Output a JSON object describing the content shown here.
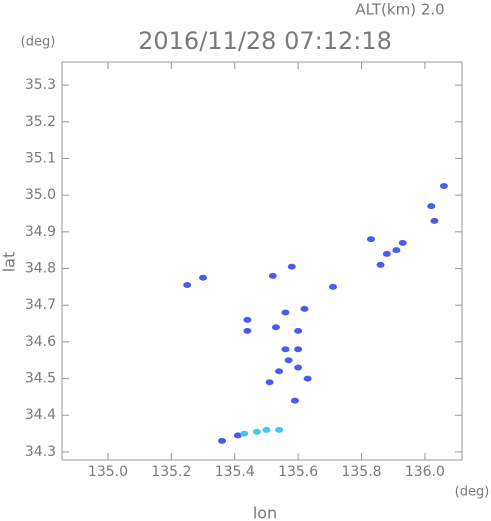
{
  "chart_data": {
    "type": "scatter",
    "title": "2016/11/28 07:12:18",
    "subtitle": "ALT(km) 2.0",
    "x_label": "lon",
    "y_label": "lat",
    "x_unit": "(deg)",
    "y_unit": "(deg)",
    "xlim": [
      134.855,
      136.117
    ],
    "ylim": [
      34.278,
      35.363
    ],
    "xticks": [
      {
        "value": 135.0,
        "label": "135.0"
      },
      135.2,
      135.4,
      135.6,
      135.8,
      {
        "value": 136.0,
        "label": "136.0"
      }
    ],
    "yticks": [
      35.3,
      35.2,
      35.1,
      {
        "value": 35.0,
        "label": "35.0"
      },
      34.9,
      34.8,
      34.7,
      34.6,
      34.5,
      34.4,
      34.3
    ],
    "series": [
      {
        "color": "#4a5cf0",
        "x": [
          135.25,
          135.3,
          135.58,
          135.71,
          135.52,
          135.44,
          135.44,
          135.53,
          135.56,
          135.6,
          135.62,
          135.56,
          135.57,
          135.54,
          135.6,
          135.51,
          135.6,
          135.63,
          135.59,
          135.36,
          135.41,
          135.93,
          135.91,
          135.88,
          136.02,
          136.03,
          136.06,
          135.83,
          135.86
        ],
        "values": [
          34.755,
          34.775,
          34.805,
          34.75,
          34.78,
          34.66,
          34.63,
          34.64,
          34.68,
          34.63,
          34.69,
          34.58,
          34.55,
          34.52,
          34.53,
          34.49,
          34.58,
          34.5,
          34.44,
          34.33,
          34.345,
          34.87,
          34.85,
          34.84,
          34.97,
          34.93,
          35.025,
          34.88,
          34.81
        ]
      },
      {
        "color": "#40c8f0",
        "x": [
          135.43,
          135.47,
          135.5,
          135.54
        ],
        "values": [
          34.35,
          34.355,
          34.36,
          34.36
        ]
      }
    ]
  }
}
